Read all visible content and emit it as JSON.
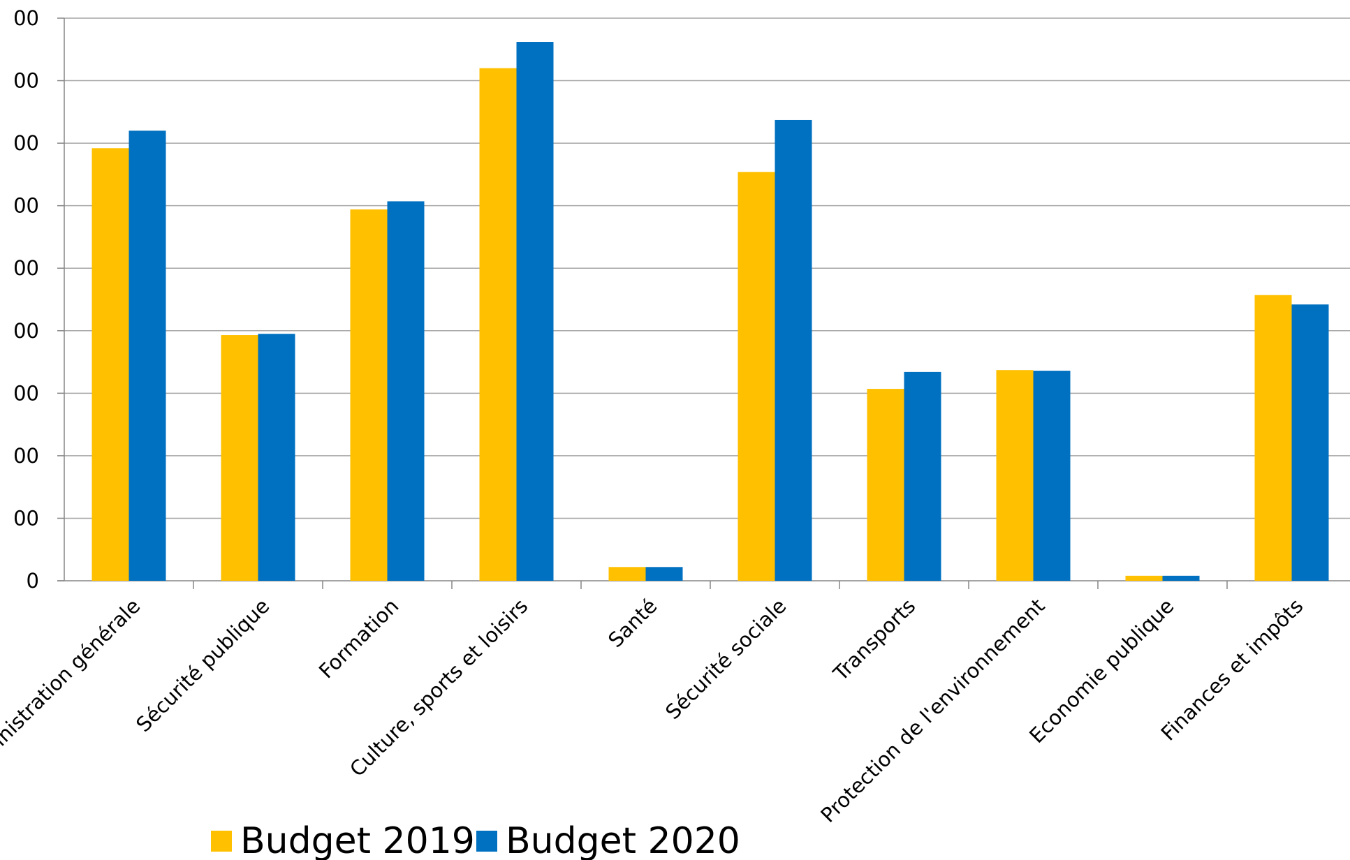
{
  "chart_data": {
    "type": "bar",
    "categories": [
      "Administration générale",
      "Sécurité publique",
      "Formation",
      "Culture, sports et loisirs",
      "Santé",
      "Sécurité sociale",
      "Transports",
      "Protection de l'environnement",
      "Economie publique",
      "Finances et impôts"
    ],
    "series": [
      {
        "name": "Budget 2019",
        "color": "#FFC000",
        "values": [
          692,
          393,
          594,
          820,
          22,
          654,
          307,
          337,
          8,
          457
        ]
      },
      {
        "name": "Budget 2020",
        "color": "#0070C0",
        "values": [
          720,
          395,
          607,
          862,
          22,
          737,
          334,
          336,
          8,
          442
        ]
      }
    ],
    "y_ticks": [
      "0",
      "00",
      "00",
      "00",
      "00",
      "00",
      "00",
      "00",
      "00",
      "00"
    ],
    "ylim": [
      0,
      900
    ],
    "grid": true,
    "legend_position": "bottom"
  }
}
